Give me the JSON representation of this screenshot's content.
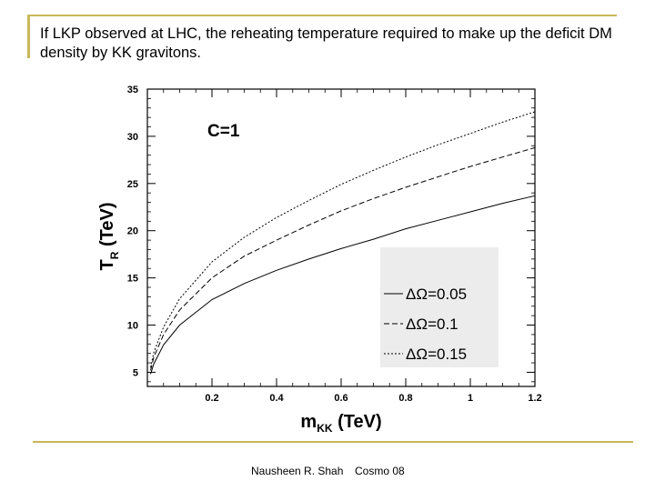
{
  "slide": {
    "title": "If LKP observed at LHC, the reheating temperature required to make up the deficit DM density by KK gravitons.",
    "footer_author": "Nausheen R. Shah",
    "footer_event": "Cosmo 08",
    "accent_color": "#c9b85a"
  },
  "chart_data": {
    "type": "line",
    "annotation": "C=1",
    "ylabel": {
      "main": "T",
      "sub": "R",
      "rest": " (TeV)"
    },
    "xlabel": {
      "main": "m",
      "sub": "KK",
      "rest": " (TeV)"
    },
    "xlim": [
      0.0,
      1.2
    ],
    "ylim": [
      3.5,
      35
    ],
    "xticks": [
      0.2,
      0.4,
      0.6,
      0.8,
      1,
      1.2
    ],
    "xtick_labels": [
      "0.2",
      "0.4",
      "0.6",
      "0.8",
      "1",
      "1.2"
    ],
    "yticks": [
      5,
      10,
      15,
      20,
      25,
      30,
      35
    ],
    "ytick_labels": [
      "5",
      "10",
      "15",
      "20",
      "25",
      "30",
      "35"
    ],
    "grid": false,
    "legend_position": "bottom-right",
    "legend_background": "#ececec",
    "series": [
      {
        "name": "ΔΩ=0.05",
        "dash": "solid",
        "x": [
          0.01,
          0.02,
          0.05,
          0.1,
          0.2,
          0.3,
          0.4,
          0.5,
          0.6,
          0.7,
          0.8,
          0.9,
          1.0,
          1.1,
          1.2
        ],
        "y": [
          4.8,
          5.9,
          7.9,
          10.0,
          12.7,
          14.4,
          15.8,
          17.0,
          18.1,
          19.1,
          20.2,
          21.1,
          22.0,
          22.9,
          23.7
        ]
      },
      {
        "name": "ΔΩ=0.1",
        "dash": "dashed",
        "x": [
          0.01,
          0.02,
          0.05,
          0.1,
          0.2,
          0.3,
          0.4,
          0.5,
          0.6,
          0.7,
          0.8,
          0.9,
          1.0,
          1.1,
          1.2
        ],
        "y": [
          5.2,
          6.6,
          9.0,
          11.6,
          15.0,
          17.3,
          19.0,
          20.6,
          22.1,
          23.4,
          24.6,
          25.7,
          26.8,
          27.8,
          28.8
        ]
      },
      {
        "name": "ΔΩ=0.15",
        "dash": "dotted",
        "x": [
          0.01,
          0.02,
          0.05,
          0.1,
          0.2,
          0.3,
          0.4,
          0.5,
          0.6,
          0.7,
          0.8,
          0.9,
          1.0,
          1.1,
          1.2
        ],
        "y": [
          5.5,
          7.1,
          9.8,
          12.8,
          16.7,
          19.3,
          21.4,
          23.2,
          24.9,
          26.4,
          27.8,
          29.1,
          30.3,
          31.5,
          32.6
        ]
      }
    ]
  }
}
